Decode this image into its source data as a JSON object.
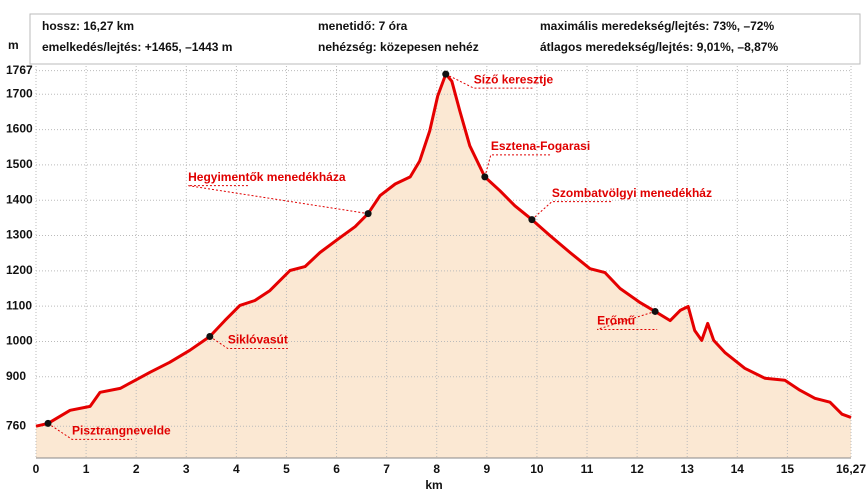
{
  "chart_data": {
    "type": "area",
    "header": [
      "hossz: 16,27 km",
      "menetidő: 7 óra",
      "maximális meredekség/lejtés: 73%, –72%",
      "emelkedés/lejtés: +1465, –1443 m",
      "nehézség: közepesen nehéz",
      "átlagos meredekség/lejtés: 9,01%, –8,87%"
    ],
    "ylabel": "m",
    "xlabel": "km",
    "color": "#e50000",
    "fill": "#fbe8d3",
    "grid": true,
    "xlim": [
      0,
      16.27
    ],
    "ylim": [
      670,
      1780
    ],
    "xticks": [
      0,
      1,
      2,
      3,
      4,
      5,
      6,
      7,
      8,
      9,
      10,
      11,
      12,
      13,
      14,
      15,
      {
        "value": 16.27,
        "label": "16,27"
      }
    ],
    "yticks": [
      760,
      900,
      1000,
      1100,
      1200,
      1300,
      1400,
      1500,
      1600,
      1700,
      1767
    ],
    "x": [
      0,
      0.24,
      0.68,
      1.08,
      1.28,
      1.68,
      1.98,
      2.28,
      2.67,
      3.07,
      3.47,
      3.77,
      4.07,
      4.37,
      4.67,
      5.07,
      5.37,
      5.67,
      6.07,
      6.37,
      6.63,
      6.87,
      7.17,
      7.47,
      7.66,
      7.86,
      8.02,
      8.18,
      8.3,
      8.46,
      8.66,
      8.96,
      9.26,
      9.56,
      9.9,
      10.26,
      10.66,
      11.06,
      11.36,
      11.66,
      12.06,
      12.36,
      12.66,
      12.86,
      13.02,
      13.15,
      13.29,
      13.41,
      13.53,
      13.75,
      14.15,
      14.55,
      14.95,
      15.25,
      15.55,
      15.85,
      16.09,
      16.27
    ],
    "values": [
      760,
      768,
      805,
      816,
      856,
      867,
      890,
      913,
      941,
      975,
      1014,
      1059,
      1102,
      1116,
      1144,
      1201,
      1212,
      1252,
      1294,
      1325,
      1362,
      1413,
      1446,
      1466,
      1511,
      1596,
      1695,
      1757,
      1737,
      1653,
      1554,
      1466,
      1427,
      1384,
      1345,
      1300,
      1252,
      1206,
      1195,
      1150,
      1110,
      1085,
      1059,
      1088,
      1099,
      1031,
      1003,
      1051,
      1003,
      969,
      924,
      896,
      890,
      862,
      839,
      828,
      794,
      785
    ],
    "annotations": [
      {
        "label": "Pisztrangnevelde",
        "x": 0.24,
        "y": 768
      },
      {
        "label": "Siklóvasút",
        "x": 3.47,
        "y": 1014
      },
      {
        "label": "Hegyimentők menedékháza",
        "x": 6.63,
        "y": 1362
      },
      {
        "label": "Síző keresztje",
        "x": 8.18,
        "y": 1757
      },
      {
        "label": "Esztena-Fogarasi",
        "x": 8.96,
        "y": 1466
      },
      {
        "label": "Szombatvölgyi menedékház",
        "x": 9.9,
        "y": 1345
      },
      {
        "label": "Erőmű",
        "x": 12.36,
        "y": 1085
      }
    ]
  }
}
